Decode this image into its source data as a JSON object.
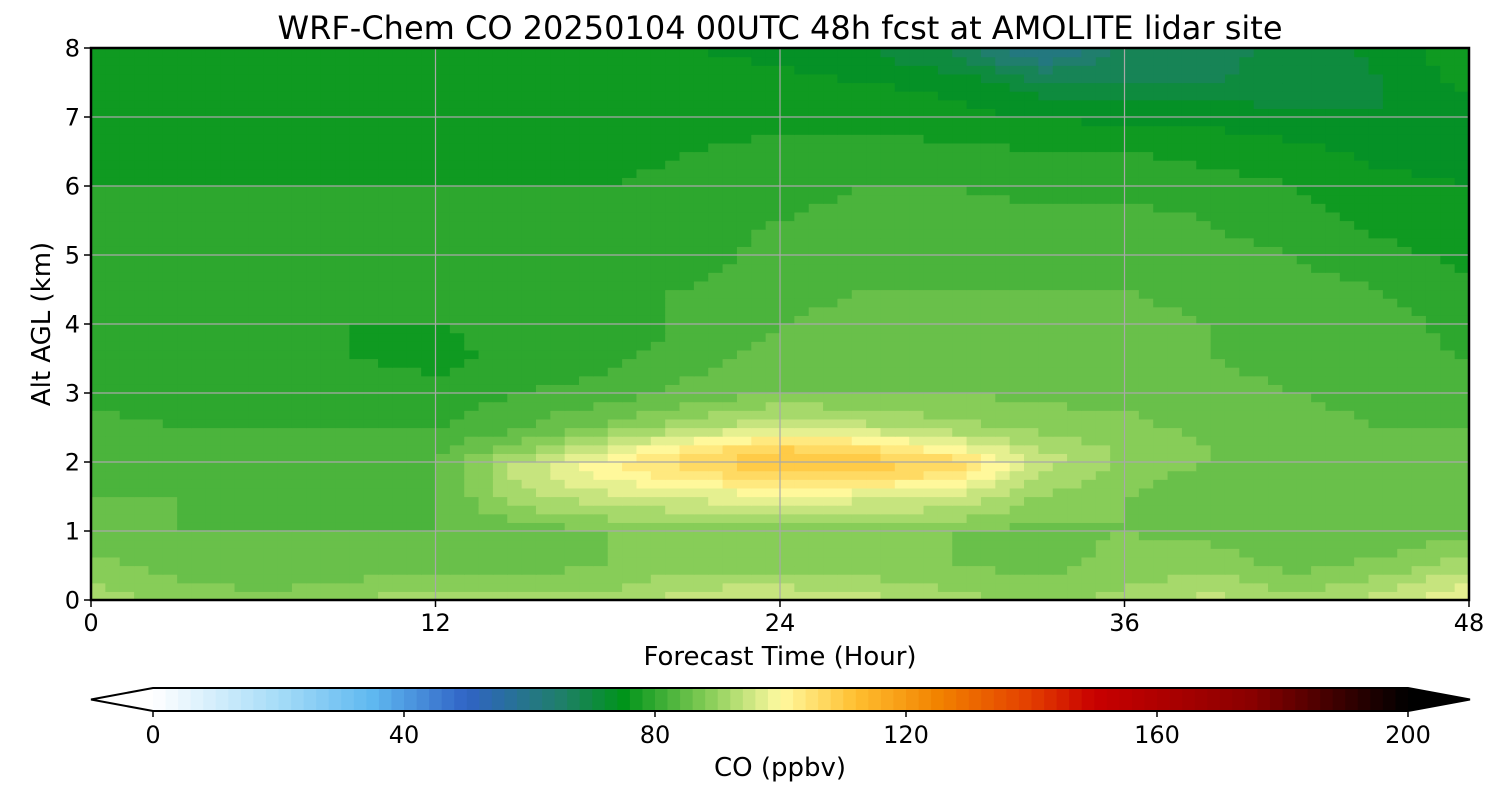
{
  "chart_data": {
    "type": "heatmap",
    "title": "WRF-Chem CO  20250104 00UTC 48h fcst at AMOLITE lidar site",
    "xlabel": "Forecast Time (Hour)",
    "ylabel": "Alt AGL (km)",
    "xlim": [
      0,
      48
    ],
    "ylim": [
      0,
      8
    ],
    "xticks": [
      "0",
      "12",
      "24",
      "36",
      "48"
    ],
    "yticks": [
      "0",
      "1",
      "2",
      "3",
      "4",
      "5",
      "6",
      "7",
      "8"
    ],
    "grid": true,
    "colorbar": {
      "label": "CO  (ppbv)",
      "range": [
        0,
        200
      ],
      "ticks": [
        "0",
        "40",
        "80",
        "120",
        "160",
        "200"
      ],
      "extend": "both",
      "stops": [
        {
          "value": 0,
          "color": "#ffffff"
        },
        {
          "value": 20,
          "color": "#a6dcf8"
        },
        {
          "value": 35,
          "color": "#5fb8f0"
        },
        {
          "value": 50,
          "color": "#3063c5"
        },
        {
          "value": 65,
          "color": "#1f7f6a"
        },
        {
          "value": 75,
          "color": "#00941a"
        },
        {
          "value": 88,
          "color": "#82cb55"
        },
        {
          "value": 100,
          "color": "#fffaa0"
        },
        {
          "value": 112,
          "color": "#ffbf30"
        },
        {
          "value": 125,
          "color": "#f28300"
        },
        {
          "value": 140,
          "color": "#e33d00"
        },
        {
          "value": 150,
          "color": "#c80000"
        },
        {
          "value": 175,
          "color": "#8a0000"
        },
        {
          "value": 192,
          "color": "#2a0000"
        },
        {
          "value": 200,
          "color": "#000000"
        }
      ]
    },
    "x_hours": [
      0,
      3,
      6,
      9,
      12,
      15,
      18,
      21,
      24,
      27,
      30,
      33,
      36,
      39,
      42,
      45,
      48
    ],
    "z_km": [
      0,
      0.5,
      1,
      1.5,
      1.8,
      2,
      2.2,
      2.5,
      3,
      3.5,
      4,
      4.5,
      5,
      5.5,
      6,
      6.5,
      7,
      7.5,
      8
    ],
    "co_ppbv": [
      [
        92,
        89,
        88,
        90,
        92,
        91,
        91,
        95,
        96,
        94,
        91,
        89,
        91,
        94,
        91,
        94,
        100
      ],
      [
        88,
        86,
        84,
        85,
        86,
        86,
        87,
        89,
        89,
        88,
        87,
        86,
        88,
        89,
        86,
        88,
        92
      ],
      [
        85,
        84,
        84,
        84,
        84,
        85,
        87,
        88,
        88,
        88,
        87,
        86,
        87,
        86,
        84,
        84,
        86
      ],
      [
        84,
        84,
        83,
        83,
        84,
        92,
        95,
        97,
        98,
        97,
        96,
        90,
        87,
        85,
        84,
        84,
        84
      ],
      [
        84,
        83,
        83,
        83,
        84,
        94,
        100,
        104,
        106,
        106,
        104,
        93,
        88,
        86,
        85,
        85,
        85
      ],
      [
        83,
        83,
        83,
        83,
        84,
        94,
        101,
        107,
        112,
        110,
        107,
        95,
        89,
        87,
        86,
        85,
        85
      ],
      [
        83,
        82,
        82,
        82,
        83,
        88,
        96,
        103,
        108,
        106,
        100,
        93,
        89,
        87,
        86,
        85,
        84
      ],
      [
        82,
        81,
        81,
        81,
        81,
        84,
        88,
        92,
        96,
        94,
        91,
        89,
        88,
        86,
        85,
        84,
        84
      ],
      [
        80,
        79,
        80,
        80,
        79,
        81,
        82,
        85,
        87,
        87,
        87,
        86,
        86,
        85,
        84,
        83,
        82
      ],
      [
        79,
        78,
        79,
        78,
        77,
        79,
        80,
        83,
        85,
        86,
        86,
        86,
        85,
        84,
        83,
        82,
        81
      ],
      [
        78,
        79,
        79,
        78,
        78,
        79,
        78,
        82,
        84,
        85,
        85,
        85,
        85,
        84,
        83,
        82,
        80
      ],
      [
        79,
        80,
        80,
        80,
        80,
        80,
        81,
        81,
        83,
        84,
        84,
        84,
        84,
        83,
        82,
        81,
        79
      ],
      [
        79,
        80,
        80,
        80,
        80,
        80,
        80,
        80,
        82,
        83,
        83,
        83,
        83,
        82,
        81,
        79,
        77
      ],
      [
        78,
        79,
        79,
        79,
        79,
        79,
        79,
        80,
        81,
        82,
        82,
        82,
        82,
        81,
        79,
        77,
        76
      ],
      [
        78,
        78,
        78,
        78,
        78,
        78,
        78,
        79,
        80,
        81,
        81,
        80,
        80,
        79,
        78,
        76,
        75
      ],
      [
        77,
        77,
        77,
        77,
        77,
        77,
        77,
        78,
        79,
        79,
        79,
        78,
        78,
        77,
        76,
        74,
        73
      ],
      [
        76,
        76,
        76,
        76,
        76,
        76,
        76,
        76,
        77,
        77,
        76,
        75,
        74,
        74,
        73,
        72,
        72
      ],
      [
        76,
        76,
        76,
        76,
        76,
        76,
        76,
        76,
        76,
        75,
        74,
        70,
        69,
        69,
        70,
        72,
        76
      ],
      [
        76,
        76,
        76,
        76,
        76,
        76,
        76,
        75,
        74,
        72,
        68,
        58,
        67,
        68,
        70,
        73,
        78
      ]
    ]
  }
}
